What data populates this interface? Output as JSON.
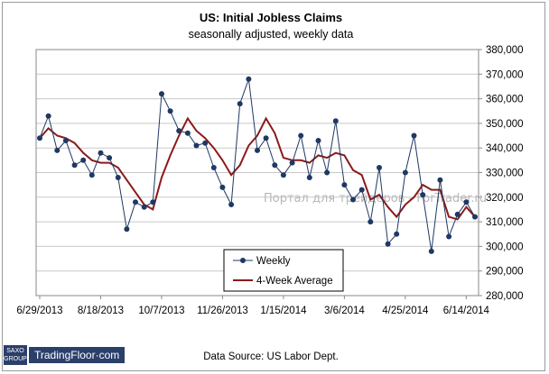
{
  "chart_data": {
    "type": "line",
    "title": "US: Initial Jobless Claims",
    "subtitle": "seasonally adjusted, weekly data",
    "source": "Data Source: US Labor Dept.",
    "watermark": "Портал для трейдеров - ForTrader.ru",
    "xlabel": "",
    "ylabel": "",
    "ylim": [
      280000,
      380000
    ],
    "y_ticks": [
      "280,000",
      "290,000",
      "300,000",
      "310,000",
      "320,000",
      "330,000",
      "340,000",
      "350,000",
      "360,000",
      "370,000",
      "380,000"
    ],
    "y_tick_values": [
      280000,
      290000,
      300000,
      310000,
      320000,
      330000,
      340000,
      350000,
      360000,
      370000,
      380000
    ],
    "x_ticks": [
      "6/29/2013",
      "8/18/2013",
      "10/7/2013",
      "11/26/2013",
      "1/15/2014",
      "3/6/2014",
      "4/25/2014",
      "6/14/2014"
    ],
    "x_tick_index": [
      0,
      7,
      14,
      21,
      28,
      35,
      42,
      49
    ],
    "grid": "horizontal",
    "legend": "bottom-center",
    "series": [
      {
        "name": "Weekly",
        "color": "#1f3864",
        "marker": "circle",
        "values": [
          344000,
          353000,
          339000,
          343000,
          333000,
          335000,
          329000,
          338000,
          336000,
          328000,
          307000,
          318000,
          316000,
          318000,
          362000,
          355000,
          347000,
          346000,
          341000,
          342000,
          332000,
          324000,
          317000,
          358000,
          368000,
          339000,
          344000,
          333000,
          329000,
          334000,
          345000,
          328000,
          343000,
          330000,
          351000,
          325000,
          319000,
          323000,
          310000,
          332000,
          301000,
          305000,
          330000,
          345000,
          321000,
          298000,
          327000,
          304000,
          313000,
          318000,
          312000
        ]
      },
      {
        "name": "4-Week Average",
        "color": "#8b1a1a",
        "marker": "none",
        "values": [
          344000,
          348000,
          345000,
          344000,
          342000,
          338000,
          335000,
          334000,
          334000,
          332000,
          327000,
          322000,
          317000,
          315000,
          328000,
          337000,
          345000,
          352000,
          347000,
          344000,
          340000,
          335000,
          329000,
          333000,
          341000,
          345000,
          352000,
          346000,
          336000,
          335000,
          335000,
          334000,
          337000,
          336000,
          338000,
          337000,
          331000,
          329000,
          319000,
          321000,
          316000,
          312000,
          317000,
          320000,
          325000,
          323000,
          323000,
          312000,
          311000,
          316000,
          312000
        ]
      }
    ]
  }
}
